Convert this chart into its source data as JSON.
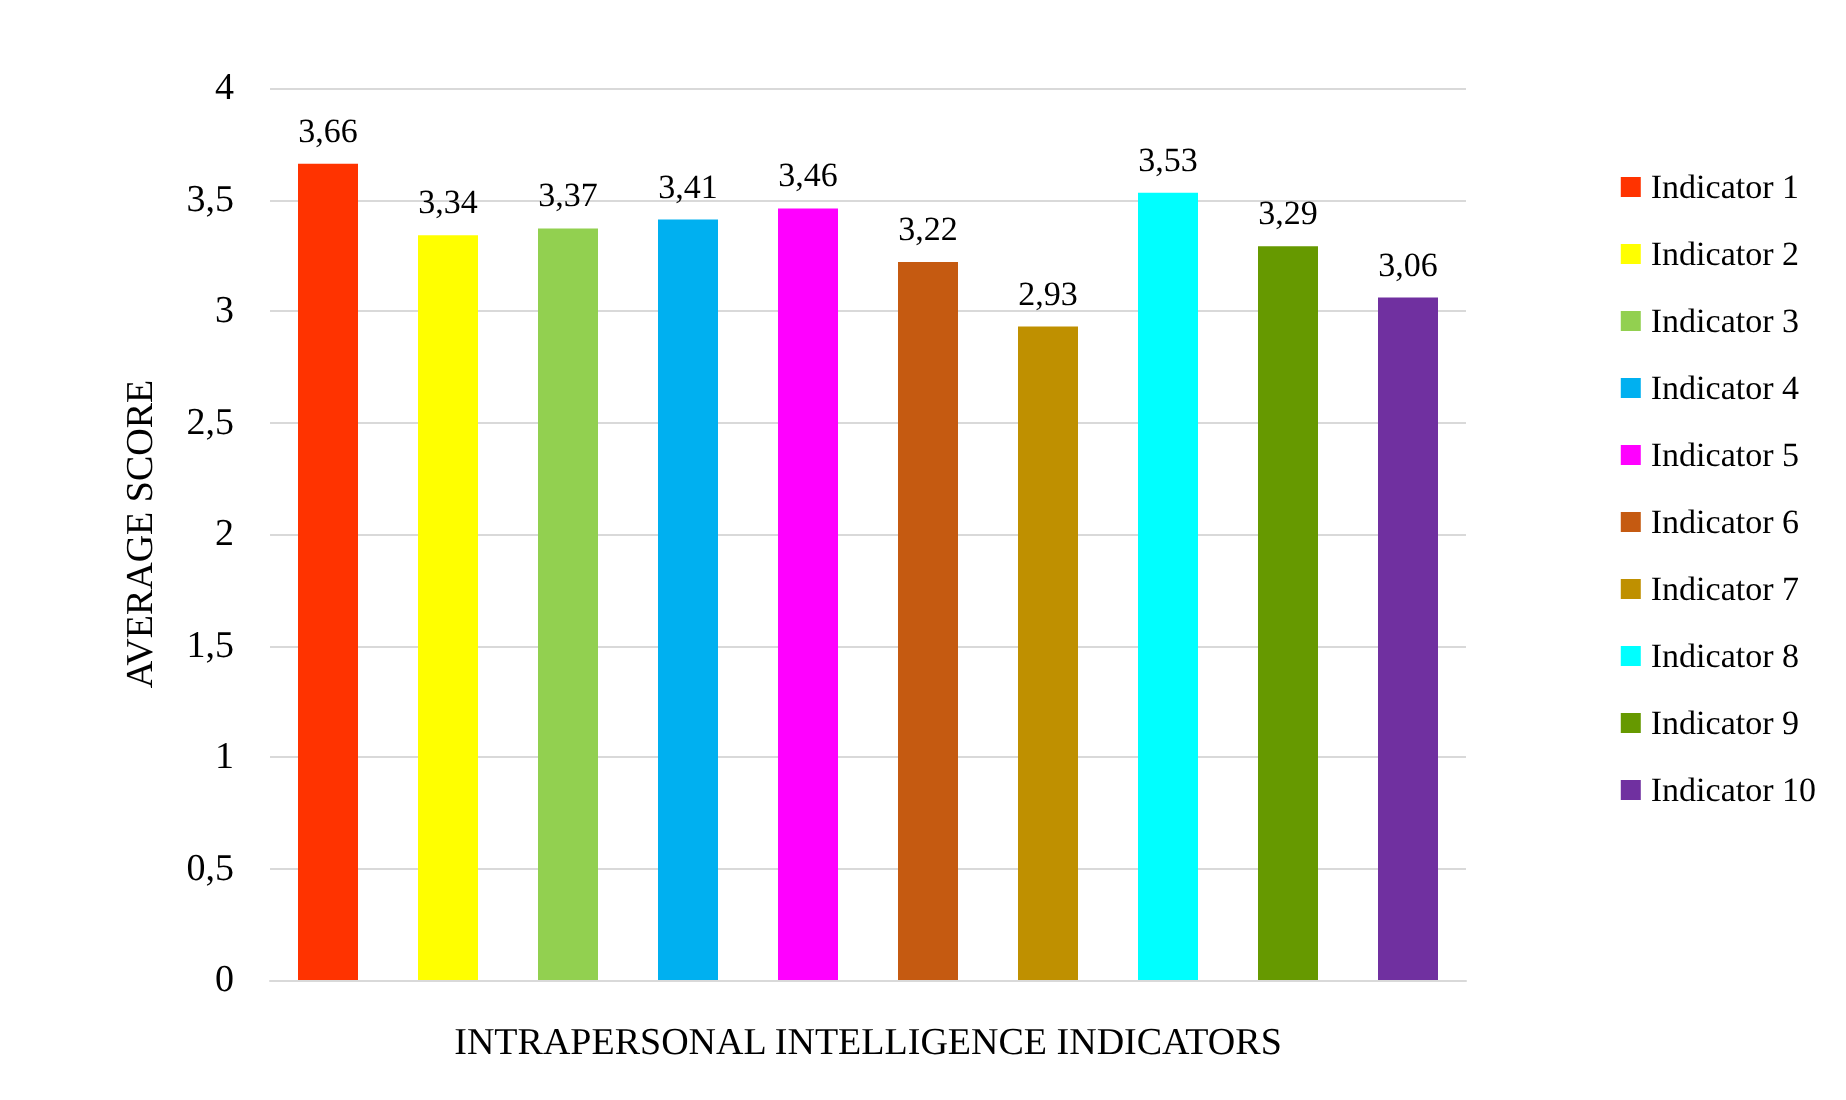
{
  "chart_data": {
    "type": "bar",
    "xlabel": "INTRAPERSONAL INTELLIGENCE INDICATORS",
    "ylabel": "AVERAGE SCORE",
    "categories": [
      null
    ],
    "series": [
      {
        "name": "Indicator 1",
        "color": "#ff3300",
        "values": [
          3.66
        ],
        "value_labels": [
          "3,66"
        ]
      },
      {
        "name": "Indicator 2",
        "color": "#ffff00",
        "values": [
          3.34
        ],
        "value_labels": [
          "3,34"
        ]
      },
      {
        "name": "Indicator 3",
        "color": "#92d050",
        "values": [
          3.37
        ],
        "value_labels": [
          "3,37"
        ]
      },
      {
        "name": "Indicator 4",
        "color": "#00b0f0",
        "values": [
          3.41
        ],
        "value_labels": [
          "3,41"
        ]
      },
      {
        "name": "Indicator 5",
        "color": "#ff00ff",
        "values": [
          3.46
        ],
        "value_labels": [
          "3,46"
        ]
      },
      {
        "name": "Indicator 6",
        "color": "#c55a11",
        "values": [
          3.22
        ],
        "value_labels": [
          "3,22"
        ]
      },
      {
        "name": "Indicator 7",
        "color": "#bf9000",
        "values": [
          2.93
        ],
        "value_labels": [
          "2,93"
        ]
      },
      {
        "name": "Indicator 8",
        "color": "#00ffff",
        "values": [
          3.53
        ],
        "value_labels": [
          "3,53"
        ]
      },
      {
        "name": "Indicator 9",
        "color": "#669900",
        "values": [
          3.29
        ],
        "value_labels": [
          "3,29"
        ]
      },
      {
        "name": "Indicator 10",
        "color": "#7030a0",
        "values": [
          3.06
        ],
        "value_labels": [
          "3,06"
        ]
      }
    ],
    "ylim": [
      0,
      4
    ],
    "yticks": [
      0,
      {
        "value": 0.5,
        "label": "0,5"
      },
      1,
      {
        "value": 1.5,
        "label": "1,5"
      },
      2,
      {
        "value": 2.5,
        "label": "2,5"
      },
      3,
      {
        "value": 3.5,
        "label": "3,5"
      },
      4
    ],
    "grid": "y",
    "legend": "right"
  }
}
